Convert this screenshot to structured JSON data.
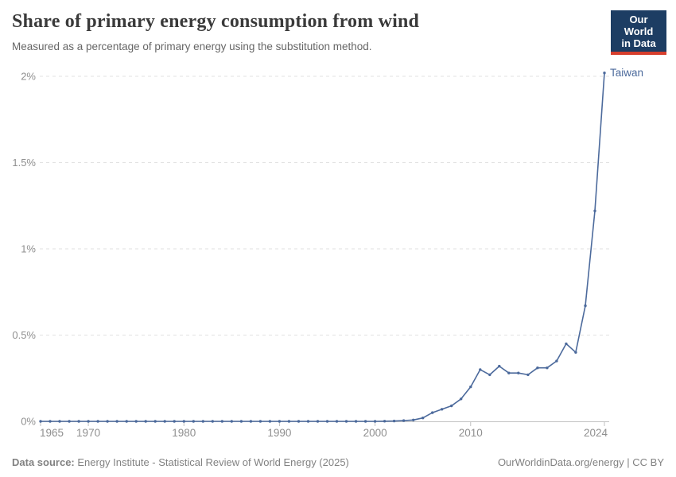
{
  "header": {
    "title": "Share of primary energy consumption from wind",
    "subtitle": "Measured as a percentage of primary energy using the substitution method.",
    "logo": {
      "line1": "Our World",
      "line2": "in Data"
    }
  },
  "footer": {
    "source_label": "Data source:",
    "source_text": " Energy Institute - Statistical Review of World Energy (2025)",
    "right_text": "OurWorldinData.org/energy | CC BY"
  },
  "colors": {
    "series_blue": "#4c6a9c",
    "gridline": "#e2e2e2",
    "axis_line": "#c2c2c2",
    "axis_text": "#8f8f8f",
    "logo_navy": "#1d3d63",
    "logo_red": "#d63e2d",
    "title_text": "#3a3a3a",
    "subtitle_text": "#666666",
    "footer_text": "#828282"
  },
  "chart_data": {
    "type": "line",
    "title": "Share of primary energy consumption from wind",
    "subtitle": "Measured as a percentage of primary energy using the substitution method.",
    "xlabel": "",
    "ylabel": "",
    "xlim": [
      1965,
      2024
    ],
    "ylim": [
      0,
      2
    ],
    "grid": "horizontal-dashed",
    "legend_position": "end-of-line-label",
    "x_ticks": [
      1965,
      1970,
      1980,
      1990,
      2000,
      2010,
      2024
    ],
    "y_ticks": [
      {
        "value": 0,
        "label": "0%"
      },
      {
        "value": 0.5,
        "label": "0.5%"
      },
      {
        "value": 1,
        "label": "1%"
      },
      {
        "value": 1.5,
        "label": "1.5%"
      },
      {
        "value": 2,
        "label": "2%"
      }
    ],
    "series": [
      {
        "name": "Taiwan",
        "color": "#4c6a9c",
        "points": [
          [
            1965,
            0
          ],
          [
            1966,
            0
          ],
          [
            1967,
            0
          ],
          [
            1968,
            0
          ],
          [
            1969,
            0
          ],
          [
            1970,
            0
          ],
          [
            1971,
            0
          ],
          [
            1972,
            0
          ],
          [
            1973,
            0
          ],
          [
            1974,
            0
          ],
          [
            1975,
            0
          ],
          [
            1976,
            0
          ],
          [
            1977,
            0
          ],
          [
            1978,
            0
          ],
          [
            1979,
            0
          ],
          [
            1980,
            0
          ],
          [
            1981,
            0
          ],
          [
            1982,
            0
          ],
          [
            1983,
            0
          ],
          [
            1984,
            0
          ],
          [
            1985,
            0
          ],
          [
            1986,
            0
          ],
          [
            1987,
            0
          ],
          [
            1988,
            0
          ],
          [
            1989,
            0
          ],
          [
            1990,
            0
          ],
          [
            1991,
            0
          ],
          [
            1992,
            0
          ],
          [
            1993,
            0
          ],
          [
            1994,
            0
          ],
          [
            1995,
            0
          ],
          [
            1996,
            0
          ],
          [
            1997,
            0
          ],
          [
            1998,
            0
          ],
          [
            1999,
            0
          ],
          [
            2000,
            0
          ],
          [
            2001,
            0.001
          ],
          [
            2002,
            0.002
          ],
          [
            2003,
            0.004
          ],
          [
            2004,
            0.008
          ],
          [
            2005,
            0.02
          ],
          [
            2006,
            0.05
          ],
          [
            2007,
            0.07
          ],
          [
            2008,
            0.09
          ],
          [
            2009,
            0.13
          ],
          [
            2010,
            0.2
          ],
          [
            2011,
            0.3
          ],
          [
            2012,
            0.27
          ],
          [
            2013,
            0.32
          ],
          [
            2014,
            0.28
          ],
          [
            2015,
            0.28
          ],
          [
            2016,
            0.27
          ],
          [
            2017,
            0.31
          ],
          [
            2018,
            0.31
          ],
          [
            2019,
            0.35
          ],
          [
            2020,
            0.45
          ],
          [
            2021,
            0.4
          ],
          [
            2022,
            0.67
          ],
          [
            2023,
            1.22
          ],
          [
            2024,
            2.02
          ]
        ]
      }
    ]
  }
}
